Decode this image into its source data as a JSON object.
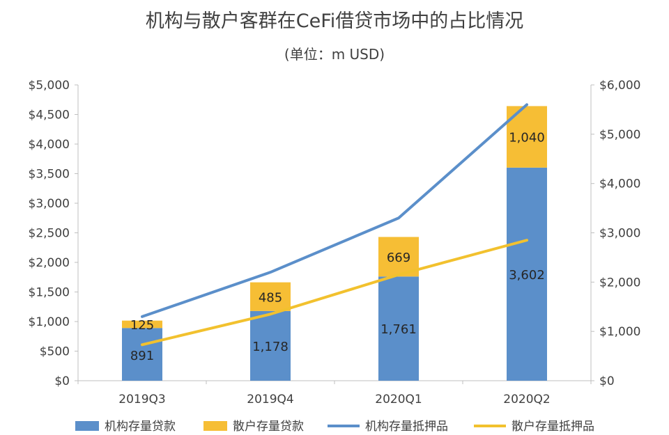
{
  "chart_data": {
    "type": "bar",
    "title": "机构与散户客群在CeFi借贷市场中的占比情况",
    "subtitle": "(单位：m USD)",
    "categories": [
      "2019Q3",
      "2019Q4",
      "2020Q1",
      "2020Q2"
    ],
    "stacked_bars": [
      {
        "name": "机构存量贷款",
        "color": "#5B8FCA",
        "values": [
          891,
          1178,
          1761,
          3602
        ],
        "labels": [
          "891",
          "1,178",
          "1,761",
          "3,602"
        ],
        "axis": "left"
      },
      {
        "name": "散户存量贷款",
        "color": "#F6BE35",
        "values": [
          125,
          485,
          669,
          1040
        ],
        "labels": [
          "125",
          "485",
          "669",
          "1,040"
        ],
        "axis": "left"
      }
    ],
    "lines": [
      {
        "name": "机构存量抵押品",
        "color": "#5B8FCA",
        "values": [
          1300,
          2200,
          3300,
          5600
        ],
        "axis": "right"
      },
      {
        "name": "散户存量抵押品",
        "color": "#F2C12E",
        "values": [
          730,
          1350,
          2150,
          2850
        ],
        "axis": "right"
      }
    ],
    "left_axis": {
      "min": 0,
      "max": 5000,
      "step": 500,
      "tick_labels": [
        "$0",
        "$500",
        "$1,000",
        "$1,500",
        "$2,000",
        "$2,500",
        "$3,000",
        "$3,500",
        "$4,000",
        "$4,500",
        "$5,000"
      ]
    },
    "right_axis": {
      "min": 0,
      "max": 6000,
      "step": 1000,
      "tick_labels": [
        "$0",
        "$1,000",
        "$2,000",
        "$3,000",
        "$4,000",
        "$5,000",
        "$6,000"
      ]
    },
    "legend": [
      "机构存量贷款",
      "散户存量贷款",
      "机构存量抵押品",
      "散户存量抵押品"
    ],
    "legend_position": "bottom",
    "grid": false
  }
}
